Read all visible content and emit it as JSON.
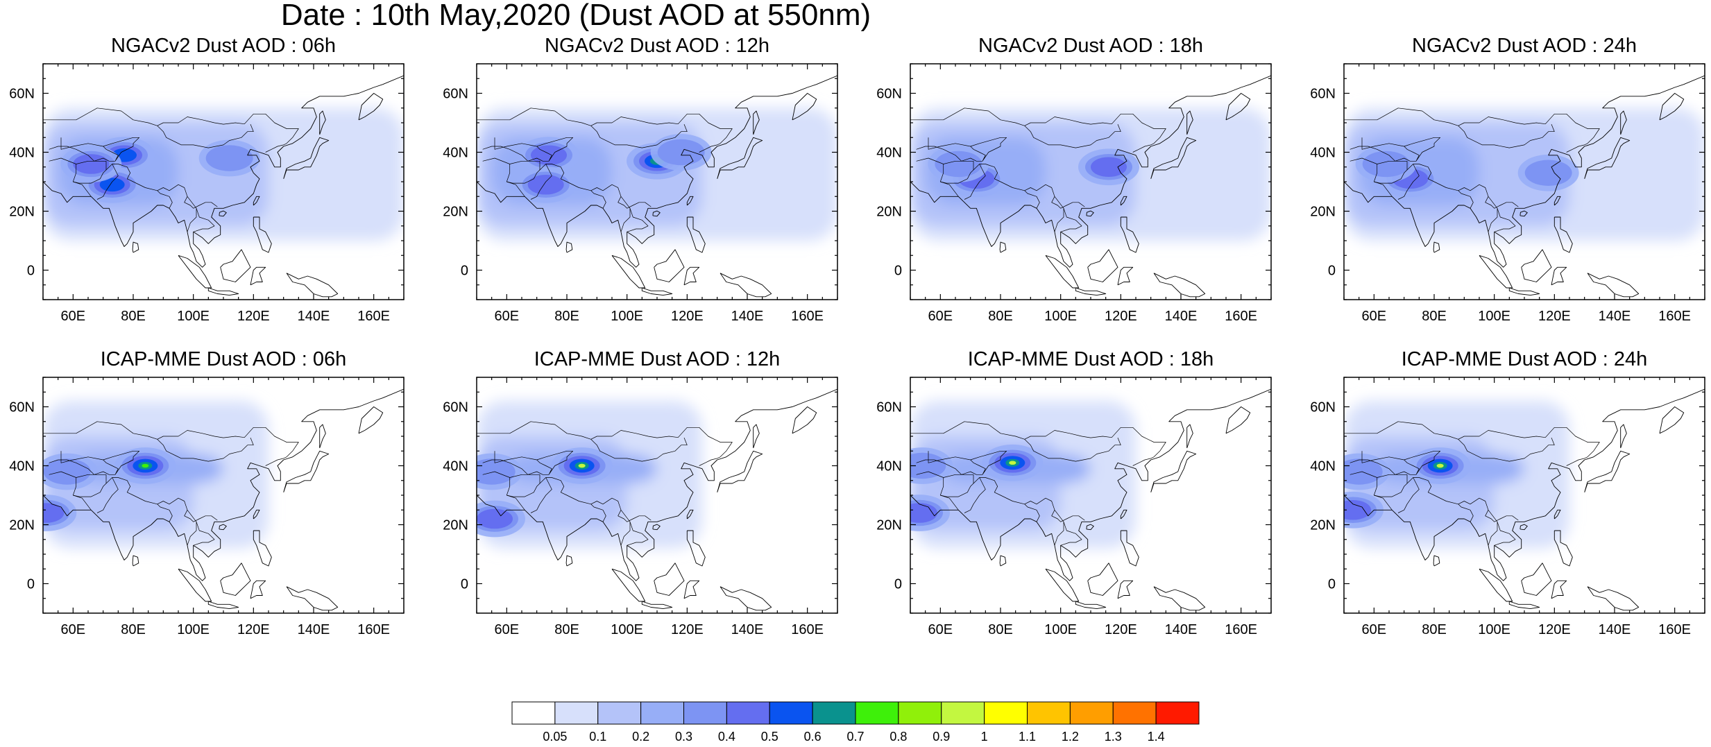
{
  "title": "Date : 10th May,2020 (Dust AOD at 550nm)",
  "map": {
    "lon_range": [
      50,
      170
    ],
    "lat_range": [
      -10,
      70
    ],
    "lon_ticks": [
      60,
      80,
      100,
      120,
      140,
      160
    ],
    "lon_tick_labels": [
      "60E",
      "80E",
      "100E",
      "120E",
      "140E",
      "160E"
    ],
    "lat_ticks": [
      0,
      20,
      40,
      60
    ],
    "lat_tick_labels": [
      "0",
      "20N",
      "40N",
      "60N"
    ],
    "field": "Dust AOD at 550nm",
    "units": "",
    "projection": "cylindrical equidistant"
  },
  "panels": [
    {
      "title": "NGACv2 Dust AOD : 06h",
      "model": "NGACv2",
      "hour": "06h",
      "hotspots": [
        {
          "lon": 77,
          "lat": 39,
          "aod": 0.5
        },
        {
          "lon": 73,
          "lat": 29,
          "aod": 0.5
        },
        {
          "lon": 66,
          "lat": 36,
          "aod": 0.4
        },
        {
          "lon": 112,
          "lat": 38,
          "aod": 0.3
        }
      ]
    },
    {
      "title": "NGACv2 Dust AOD : 12h",
      "model": "NGACv2",
      "hour": "12h",
      "hotspots": [
        {
          "lon": 110,
          "lat": 37,
          "aod": 0.6
        },
        {
          "lon": 74,
          "lat": 39,
          "aod": 0.4
        },
        {
          "lon": 73,
          "lat": 29,
          "aod": 0.4
        },
        {
          "lon": 118,
          "lat": 40,
          "aod": 0.35
        }
      ]
    },
    {
      "title": "NGACv2 Dust AOD : 18h",
      "model": "NGACv2",
      "hour": "18h",
      "hotspots": [
        {
          "lon": 72,
          "lat": 31,
          "aod": 0.45
        },
        {
          "lon": 116,
          "lat": 35,
          "aod": 0.4
        },
        {
          "lon": 66,
          "lat": 36,
          "aod": 0.35
        }
      ]
    },
    {
      "title": "NGACv2 Dust AOD : 24h",
      "model": "NGACv2",
      "hour": "24h",
      "hotspots": [
        {
          "lon": 72,
          "lat": 31,
          "aod": 0.45
        },
        {
          "lon": 118,
          "lat": 33,
          "aod": 0.35
        },
        {
          "lon": 64,
          "lat": 36,
          "aod": 0.35
        }
      ]
    },
    {
      "title": "ICAP-MME Dust AOD : 06h",
      "model": "ICAP-MME",
      "hour": "06h",
      "hotspots": [
        {
          "lon": 84,
          "lat": 40,
          "aod": 0.75
        },
        {
          "lon": 51,
          "lat": 24,
          "aod": 0.45
        },
        {
          "lon": 58,
          "lat": 38,
          "aod": 0.35
        }
      ]
    },
    {
      "title": "ICAP-MME Dust AOD : 12h",
      "model": "ICAP-MME",
      "hour": "12h",
      "hotspots": [
        {
          "lon": 85,
          "lat": 40,
          "aod": 0.9
        },
        {
          "lon": 56,
          "lat": 22,
          "aod": 0.45
        },
        {
          "lon": 55,
          "lat": 38,
          "aod": 0.35
        }
      ]
    },
    {
      "title": "ICAP-MME Dust AOD : 18h",
      "model": "ICAP-MME",
      "hour": "18h",
      "hotspots": [
        {
          "lon": 84,
          "lat": 41,
          "aod": 0.95
        },
        {
          "lon": 53,
          "lat": 24,
          "aod": 0.4
        },
        {
          "lon": 54,
          "lat": 40,
          "aod": 0.35
        }
      ]
    },
    {
      "title": "ICAP-MME Dust AOD : 24h",
      "model": "ICAP-MME",
      "hour": "24h",
      "hotspots": [
        {
          "lon": 82,
          "lat": 40,
          "aod": 0.95
        },
        {
          "lon": 53,
          "lat": 25,
          "aod": 0.4
        },
        {
          "lon": 55,
          "lat": 38,
          "aod": 0.35
        }
      ]
    }
  ],
  "colorbar": {
    "levels": [
      "0.05",
      "0.1",
      "0.2",
      "0.3",
      "0.4",
      "0.5",
      "0.6",
      "0.7",
      "0.8",
      "0.9",
      "1",
      "1.1",
      "1.2",
      "1.3",
      "1.4"
    ],
    "colors": [
      "#ffffff",
      "#d7e0fb",
      "#b4c3f9",
      "#97aef7",
      "#7d94f3",
      "#646ef0",
      "#0a54f0",
      "#0a928e",
      "#3ef00a",
      "#90f00a",
      "#c3f740",
      "#ffff00",
      "#ffc400",
      "#ff9e00",
      "#ff7200",
      "#ff1a00"
    ]
  }
}
